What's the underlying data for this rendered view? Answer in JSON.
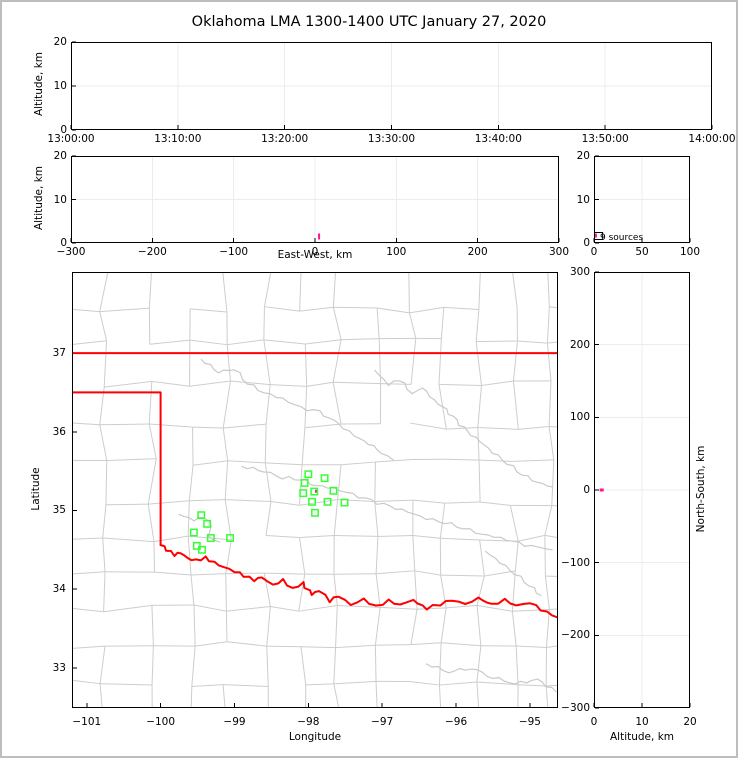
{
  "title": "Oklahoma LMA 1300-1400 UTC January 27, 2020",
  "axis": {
    "altitude_label": "Altitude, km",
    "ew_label": "East-West, km",
    "ns_label": "North-South, km",
    "lon_label": "Longitude",
    "lat_label": "Latitude"
  },
  "annotation": {
    "sources_text": "9 sources"
  },
  "colors": {
    "state_border": "#ff0000",
    "station_marker": "#33ff33",
    "source_marker": "#ff1493",
    "county_line": "#cdcdcd",
    "river_line": "#c9c9c9",
    "gridline": "#ececec",
    "axis_line": "#000000",
    "frame": "#bdbdbd"
  },
  "chart_data": [
    {
      "id": "time_height",
      "type": "scatter",
      "xlabel": "",
      "ylabel": "Altitude, km",
      "xticks": [
        "13:00:00",
        "13:10:00",
        "13:20:00",
        "13:30:00",
        "13:40:00",
        "13:50:00",
        "14:00:00"
      ],
      "yticks": [
        0,
        10,
        20
      ],
      "ylim": [
        0,
        20
      ],
      "points": []
    },
    {
      "id": "ew_height",
      "type": "scatter",
      "xlabel": "East-West, km",
      "ylabel": "Altitude, km",
      "xticks": [
        -300,
        -200,
        -100,
        0,
        100,
        200,
        300
      ],
      "yticks": [
        0,
        10,
        20
      ],
      "xlim": [
        -300,
        300
      ],
      "ylim": [
        0,
        20
      ],
      "points": [
        {
          "x": 5,
          "y": 1.5
        }
      ]
    },
    {
      "id": "alt_histogram",
      "type": "line",
      "xlabel": "",
      "ylabel": "",
      "xticks": [
        0,
        50,
        100
      ],
      "yticks": [
        0,
        10,
        20
      ],
      "xlim": [
        0,
        100
      ],
      "ylim": [
        0,
        20
      ],
      "annotation": "9 sources",
      "spike": {
        "count": 9,
        "alt_low_km": 0.8,
        "alt_high_km": 2.4
      }
    },
    {
      "id": "map",
      "type": "scatter",
      "xlabel": "Longitude",
      "ylabel": "Latitude",
      "xticks": [
        -101,
        -100,
        -99,
        -98,
        -97,
        -96,
        -95
      ],
      "yticks": [
        33,
        34,
        35,
        36,
        37
      ],
      "xlim": [
        -101.2,
        -94.62
      ],
      "ylim": [
        32.49,
        38.03
      ],
      "source_point": [
        -97.89,
        35.245
      ],
      "stations": [
        [
          -98.0,
          35.46
        ],
        [
          -97.78,
          35.41
        ],
        [
          -98.05,
          35.35
        ],
        [
          -98.07,
          35.22
        ],
        [
          -97.92,
          35.24
        ],
        [
          -97.66,
          35.25
        ],
        [
          -97.95,
          35.11
        ],
        [
          -97.74,
          35.11
        ],
        [
          -97.51,
          35.1
        ],
        [
          -97.91,
          34.97
        ],
        [
          -99.45,
          34.94
        ],
        [
          -99.37,
          34.83
        ],
        [
          -99.55,
          34.72
        ],
        [
          -99.32,
          34.65
        ],
        [
          -99.06,
          34.65
        ],
        [
          -99.51,
          34.55
        ],
        [
          -99.44,
          34.5
        ]
      ],
      "state_border": {
        "kansas_line": [
          [
            -101.2,
            37.0
          ],
          [
            -94.62,
            37.0
          ]
        ],
        "texas_panhandle": [
          [
            -101.2,
            36.5
          ],
          [
            -100.0,
            36.5
          ],
          [
            -100.0,
            34.56
          ]
        ],
        "red_river": [
          [
            -100.0,
            34.56
          ],
          [
            -99.92,
            34.5
          ],
          [
            -99.82,
            34.44
          ],
          [
            -99.72,
            34.47
          ],
          [
            -99.63,
            34.4
          ],
          [
            -99.52,
            34.37
          ],
          [
            -99.4,
            34.4
          ],
          [
            -99.28,
            34.33
          ],
          [
            -99.15,
            34.27
          ],
          [
            -99.0,
            34.22
          ],
          [
            -98.87,
            34.17
          ],
          [
            -98.74,
            34.12
          ],
          [
            -98.62,
            34.16
          ],
          [
            -98.48,
            34.06
          ],
          [
            -98.35,
            34.12
          ],
          [
            -98.2,
            34.0
          ],
          [
            -98.08,
            34.08
          ],
          [
            -97.95,
            33.92
          ],
          [
            -97.85,
            33.98
          ],
          [
            -97.72,
            33.85
          ],
          [
            -97.58,
            33.92
          ],
          [
            -97.43,
            33.81
          ],
          [
            -97.25,
            33.88
          ],
          [
            -97.08,
            33.78
          ],
          [
            -96.92,
            33.85
          ],
          [
            -96.75,
            33.79
          ],
          [
            -96.58,
            33.86
          ],
          [
            -96.4,
            33.75
          ],
          [
            -96.22,
            33.81
          ],
          [
            -96.05,
            33.87
          ],
          [
            -95.88,
            33.82
          ],
          [
            -95.7,
            33.89
          ],
          [
            -95.52,
            33.8
          ],
          [
            -95.35,
            33.86
          ],
          [
            -95.18,
            33.78
          ],
          [
            -95.0,
            33.82
          ],
          [
            -94.85,
            33.74
          ],
          [
            -94.62,
            33.64
          ]
        ]
      },
      "rivers": [
        [
          [
            -99.45,
            36.92
          ],
          [
            -99.22,
            36.76
          ],
          [
            -99.0,
            36.8
          ],
          [
            -98.82,
            36.62
          ],
          [
            -98.6,
            36.5
          ],
          [
            -98.35,
            36.42
          ],
          [
            -98.1,
            36.3
          ],
          [
            -97.85,
            36.25
          ],
          [
            -97.6,
            36.1
          ],
          [
            -97.38,
            35.95
          ],
          [
            -97.18,
            35.85
          ],
          [
            -97.0,
            35.74
          ],
          [
            -96.85,
            35.64
          ]
        ],
        [
          [
            -97.1,
            36.78
          ],
          [
            -96.92,
            36.6
          ],
          [
            -96.76,
            36.66
          ],
          [
            -96.6,
            36.5
          ],
          [
            -96.45,
            36.56
          ],
          [
            -96.3,
            36.4
          ],
          [
            -96.14,
            36.28
          ],
          [
            -96.0,
            36.14
          ],
          [
            -95.85,
            36.0
          ],
          [
            -95.68,
            35.88
          ],
          [
            -95.5,
            35.74
          ],
          [
            -95.3,
            35.6
          ],
          [
            -95.1,
            35.46
          ],
          [
            -94.9,
            35.36
          ],
          [
            -94.7,
            35.3
          ]
        ],
        [
          [
            -98.9,
            35.56
          ],
          [
            -98.6,
            35.5
          ],
          [
            -98.35,
            35.42
          ],
          [
            -98.1,
            35.4
          ],
          [
            -97.9,
            35.32
          ],
          [
            -97.65,
            35.28
          ],
          [
            -97.4,
            35.2
          ],
          [
            -97.15,
            35.12
          ],
          [
            -96.9,
            35.05
          ],
          [
            -96.65,
            34.98
          ],
          [
            -96.4,
            34.9
          ],
          [
            -96.15,
            34.85
          ],
          [
            -95.9,
            34.78
          ],
          [
            -95.65,
            34.7
          ],
          [
            -95.4,
            34.65
          ],
          [
            -95.15,
            34.58
          ],
          [
            -94.9,
            34.52
          ],
          [
            -94.7,
            34.5
          ]
        ],
        [
          [
            -99.75,
            34.95
          ],
          [
            -99.55,
            34.88
          ],
          [
            -99.4,
            34.92
          ],
          [
            -99.3,
            34.8
          ],
          [
            -99.35,
            34.68
          ],
          [
            -99.2,
            34.6
          ]
        ],
        [
          [
            -95.6,
            34.48
          ],
          [
            -95.4,
            34.34
          ],
          [
            -95.2,
            34.2
          ],
          [
            -95.0,
            34.05
          ],
          [
            -94.85,
            33.92
          ]
        ],
        [
          [
            -96.4,
            33.05
          ],
          [
            -96.1,
            32.95
          ],
          [
            -95.8,
            33.0
          ],
          [
            -95.5,
            32.88
          ],
          [
            -95.2,
            32.8
          ],
          [
            -94.9,
            32.85
          ],
          [
            -94.65,
            32.7
          ]
        ]
      ]
    },
    {
      "id": "ns_height",
      "type": "scatter",
      "xlabel": "Altitude, km",
      "ylabel": "North-South, km",
      "xticks": [
        0,
        10,
        20
      ],
      "yticks": [
        -300,
        -200,
        -100,
        0,
        100,
        200,
        300
      ],
      "xlim": [
        0,
        20
      ],
      "ylim": [
        -300,
        300
      ],
      "points": [
        {
          "x": 1.6,
          "y": 0
        }
      ]
    }
  ]
}
